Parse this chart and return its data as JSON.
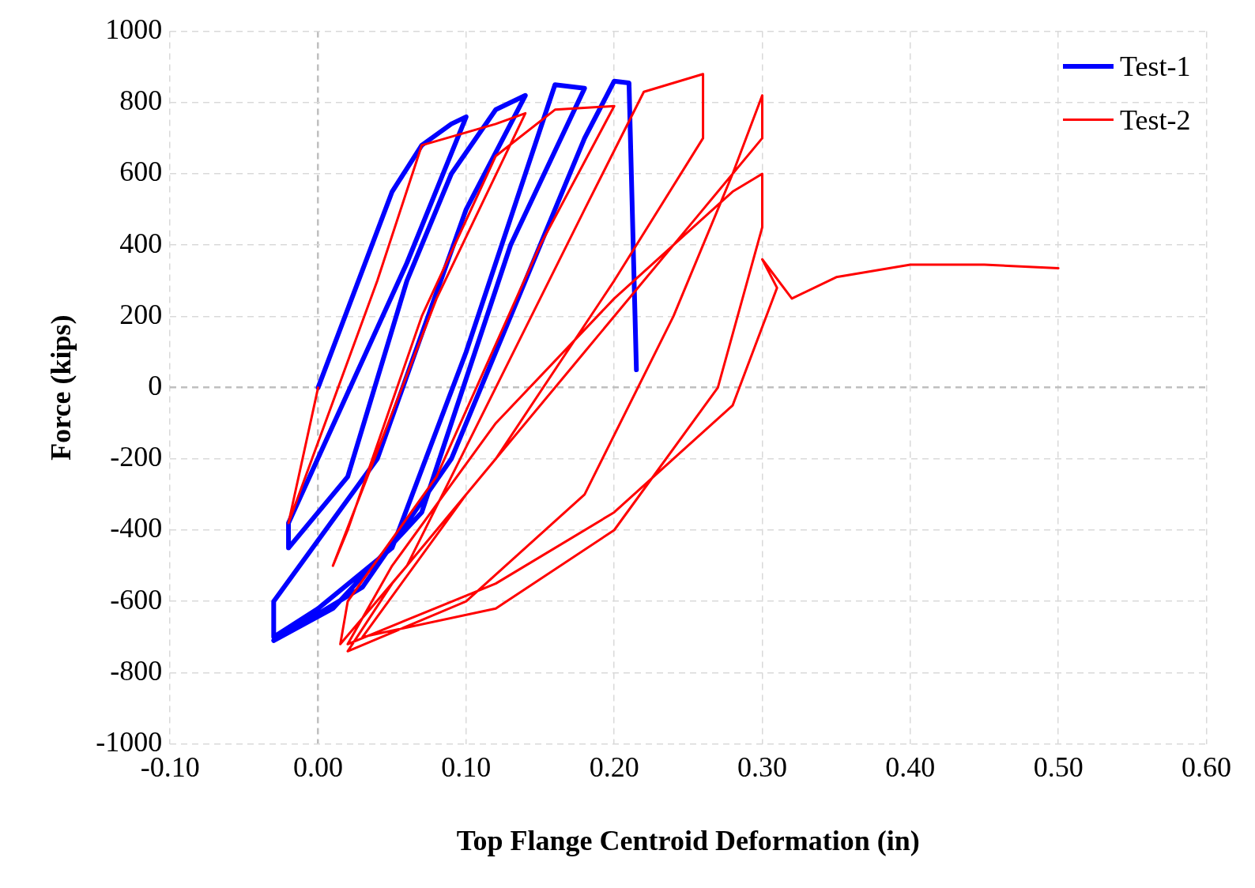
{
  "chart_data": {
    "type": "line",
    "xlabel": "Top Flange Centroid Deformation (in)",
    "ylabel": "Force (kips)",
    "xlim": [
      -0.1,
      0.6
    ],
    "xticks": [
      {
        "value": -0.1,
        "label": "-0.10"
      },
      {
        "value": 0,
        "label": "0.00"
      },
      {
        "value": 0.1,
        "label": "0.10"
      },
      {
        "value": 0.2,
        "label": "0.20"
      },
      {
        "value": 0.3,
        "label": "0.30"
      },
      {
        "value": 0.4,
        "label": "0.40"
      },
      {
        "value": 0.5,
        "label": "0.50"
      },
      {
        "value": 0.6,
        "label": "0.60"
      }
    ],
    "ylim": [
      -1000,
      1000
    ],
    "yticks": [
      -1000,
      -800,
      -600,
      -400,
      -200,
      0,
      200,
      400,
      600,
      800,
      1000
    ],
    "grid": true,
    "legend": "top right",
    "marker": "none",
    "line_style": "solid",
    "series": [
      {
        "name": "Test-1",
        "color": "#0000ff",
        "x": [
          0,
          0.05,
          0.07,
          0.09,
          0.1,
          0.06,
          -0.02,
          -0.02,
          0.02,
          0.06,
          0.09,
          0.12,
          0.14,
          0.1,
          0.04,
          -0.03,
          -0.03,
          0,
          0.05,
          0.1,
          0.14,
          0.16,
          0.18,
          0.13,
          0.07,
          0.01,
          -0.03,
          0.03,
          0.09,
          0.14,
          0.18,
          0.2,
          0.21,
          0.215
        ],
        "values": [
          0,
          550,
          680,
          740,
          760,
          350,
          -380,
          -450,
          -250,
          300,
          600,
          780,
          820,
          500,
          -200,
          -600,
          -700,
          -620,
          -450,
          100,
          600,
          850,
          840,
          400,
          -350,
          -620,
          -710,
          -560,
          -200,
          300,
          700,
          860,
          855,
          50
        ]
      },
      {
        "name": "Test-2",
        "color": "#ff0000",
        "x": [
          0,
          -0.02,
          0.04,
          0.07,
          0.12,
          0.14,
          0.08,
          0.01,
          0.02,
          0.07,
          0.12,
          0.16,
          0.2,
          0.15,
          0.08,
          0.02,
          0.015,
          0.06,
          0.12,
          0.18,
          0.22,
          0.26,
          0.26,
          0.2,
          0.12,
          0.05,
          0.02,
          0.1,
          0.18,
          0.24,
          0.28,
          0.3,
          0.3,
          0.26,
          0.18,
          0.1,
          0.03,
          0.12,
          0.2,
          0.27,
          0.3,
          0.3,
          0.28,
          0.2,
          0.12,
          0.05,
          0.02,
          0.12,
          0.2,
          0.28,
          0.31,
          0.3,
          0.32,
          0.35,
          0.4,
          0.45,
          0.5
        ],
        "values": [
          0,
          -380,
          300,
          680,
          740,
          770,
          250,
          -500,
          -400,
          200,
          650,
          780,
          790,
          400,
          -250,
          -600,
          -720,
          -500,
          0,
          500,
          830,
          880,
          700,
          300,
          -200,
          -550,
          -740,
          -600,
          -300,
          200,
          600,
          820,
          700,
          500,
          100,
          -300,
          -700,
          -620,
          -400,
          0,
          450,
          600,
          550,
          250,
          -100,
          -500,
          -720,
          -550,
          -350,
          -50,
          280,
          360,
          250,
          310,
          345,
          345,
          335
        ]
      }
    ]
  }
}
